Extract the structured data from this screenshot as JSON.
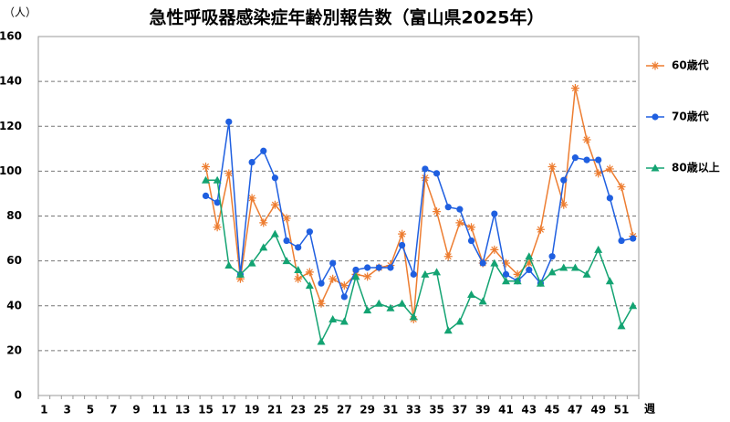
{
  "chart_data": {
    "type": "line",
    "title": "急性呼吸器感染症年齢別報告数（富山県2025年）",
    "y_label": "（人）",
    "x_label": "週",
    "categories": [
      "1",
      null,
      "3",
      null,
      "5",
      null,
      "7",
      null,
      "9",
      null,
      "11",
      null,
      "13",
      null,
      "15",
      null,
      "17",
      null,
      "19",
      null,
      "21",
      null,
      "23",
      null,
      "25",
      null,
      "27",
      null,
      "29",
      null,
      "31",
      null,
      "33",
      null,
      "35",
      null,
      "37",
      null,
      "39",
      null,
      "41",
      null,
      "43",
      null,
      "45",
      null,
      "47",
      null,
      "49",
      null,
      "51",
      null
    ],
    "series": [
      {
        "name": "60歳代",
        "color": "#ed7d31",
        "marker": "asterisk",
        "values": [
          null,
          null,
          null,
          null,
          null,
          null,
          null,
          null,
          null,
          null,
          null,
          null,
          null,
          null,
          102,
          75,
          99,
          52,
          88,
          77,
          85,
          79,
          52,
          55,
          41,
          52,
          49,
          54,
          53,
          57,
          58,
          72,
          34,
          97,
          82,
          62,
          77,
          75,
          59,
          65,
          59,
          54,
          59,
          74,
          102,
          85,
          137,
          114,
          99,
          101,
          93,
          71
        ]
      },
      {
        "name": "70歳代",
        "color": "#1f5fe0",
        "marker": "circle",
        "values": [
          null,
          null,
          null,
          null,
          null,
          null,
          null,
          null,
          null,
          null,
          null,
          null,
          null,
          null,
          89,
          86,
          122,
          54,
          104,
          109,
          97,
          69,
          66,
          73,
          50,
          59,
          44,
          56,
          57,
          57,
          57,
          67,
          54,
          101,
          99,
          84,
          83,
          69,
          59,
          81,
          54,
          51,
          56,
          50,
          62,
          96,
          106,
          105,
          105,
          88,
          69,
          70
        ]
      },
      {
        "name": "80歳以上",
        "color": "#13a372",
        "marker": "triangle",
        "values": [
          null,
          null,
          null,
          null,
          null,
          null,
          null,
          null,
          null,
          null,
          null,
          null,
          null,
          null,
          96,
          96,
          58,
          54,
          59,
          66,
          72,
          60,
          56,
          49,
          24,
          34,
          33,
          53,
          38,
          41,
          39,
          41,
          35,
          54,
          55,
          29,
          33,
          45,
          42,
          59,
          51,
          51,
          62,
          50,
          55,
          57,
          57,
          54,
          65,
          51,
          31,
          40
        ]
      }
    ],
    "ylim": [
      0,
      160
    ],
    "yticks": [
      0,
      20,
      40,
      60,
      80,
      100,
      120,
      140,
      160
    ],
    "grid": true,
    "legend": "right"
  }
}
